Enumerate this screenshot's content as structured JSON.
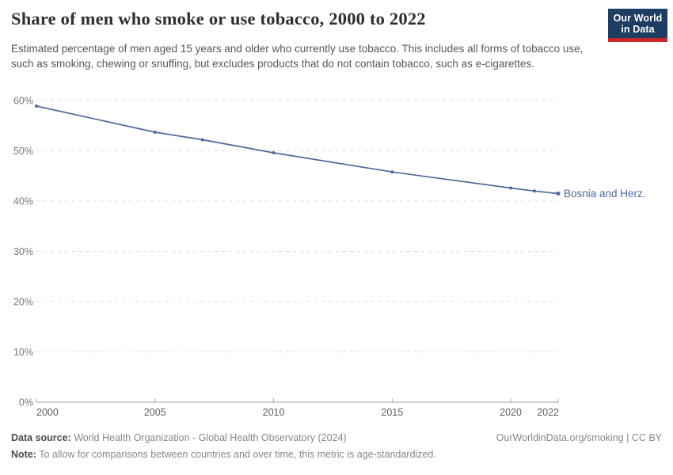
{
  "header": {
    "title": "Share of men who smoke or use tobacco, 2000 to 2022",
    "subtitle": "Estimated percentage of men aged 15 years and older who currently use tobacco. This includes all forms of tobacco use, such as smoking, chewing or snuffing, but excludes products that do not contain tobacco, such as e-cigarettes.",
    "logo": {
      "line1": "Our World",
      "line2": "in Data",
      "bg_color": "#1d3d63",
      "bar_color": "#c62828",
      "text_color": "#ffffff"
    }
  },
  "chart_data": {
    "type": "line",
    "title": "Share of men who smoke or use tobacco, 2000 to 2022",
    "xlabel": "",
    "ylabel": "",
    "xlim": [
      2000,
      2022
    ],
    "ylim": [
      0,
      60
    ],
    "grid": "horizontal-dashed",
    "legend_position": "end-of-line-label",
    "x": [
      2000,
      2005,
      2007,
      2010,
      2015,
      2020,
      2021,
      2022
    ],
    "series": [
      {
        "name": "Bosnia and Herz.",
        "color": "#4c6a9c",
        "values": [
          58.9,
          53.7,
          52.2,
          49.6,
          45.8,
          42.6,
          42.0,
          41.5
        ]
      }
    ],
    "y_ticks": [
      {
        "v": 0,
        "label": "0%"
      },
      {
        "v": 10,
        "label": "10%"
      },
      {
        "v": 20,
        "label": "20%"
      },
      {
        "v": 30,
        "label": "30%"
      },
      {
        "v": 40,
        "label": "40%"
      },
      {
        "v": 50,
        "label": "50%"
      },
      {
        "v": 60,
        "label": "60%"
      }
    ],
    "x_ticks": [
      {
        "v": 2000,
        "label": "2000"
      },
      {
        "v": 2005,
        "label": "2005"
      },
      {
        "v": 2010,
        "label": "2010"
      },
      {
        "v": 2015,
        "label": "2015"
      },
      {
        "v": 2020,
        "label": "2020"
      },
      {
        "v": 2022,
        "label": "2022"
      }
    ],
    "end_label": "Bosnia and Herz.",
    "colors": {
      "grid": "#dcdcdc",
      "axis": "#a1a1a1",
      "y_tick_text": "#767676",
      "x_tick_text": "#5f5f5f"
    }
  },
  "footer": {
    "source_label": "Data source:",
    "source_text": "World Health Organization - Global Health Observatory (2024)",
    "note_label": "Note:",
    "note_text": "To allow for comparisons between countries and over time, this metric is age-standardized.",
    "link_text": "OurWorldinData.org/smoking | CC BY"
  }
}
